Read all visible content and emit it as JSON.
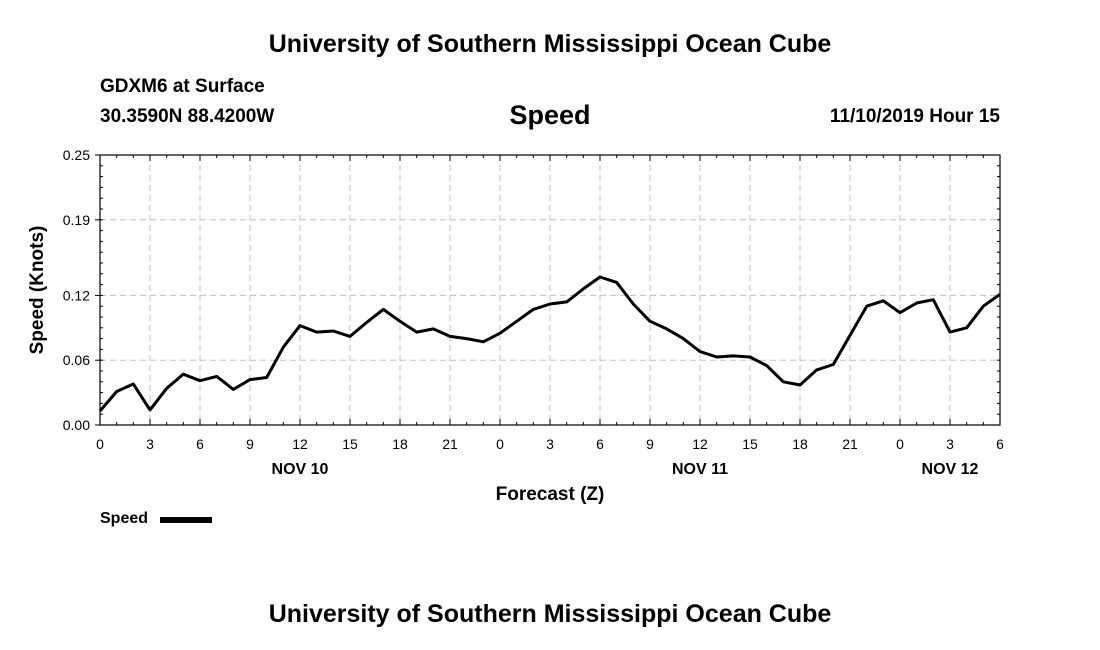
{
  "header": {
    "top_title": "University of Southern Mississippi Ocean Cube",
    "bottom_title": "University of Southern Mississippi Ocean Cube",
    "station": "GDXM6 at Surface",
    "location": "30.3590N 88.4200W",
    "datetime": "11/10/2019 Hour 15"
  },
  "chart_data": {
    "type": "line",
    "title": "Speed",
    "xlabel": "Forecast (Z)",
    "ylabel": "Speed (Knots)",
    "ylim": [
      0,
      0.25
    ],
    "xlim": [
      0,
      54
    ],
    "grid": true,
    "y_ticks": [
      0.0,
      0.06,
      0.12,
      0.19,
      0.25
    ],
    "y_tick_labels": [
      "0.00",
      "0.06",
      "0.12",
      "0.19",
      "0.25"
    ],
    "x_ticks": [
      0,
      3,
      6,
      9,
      12,
      15,
      18,
      21,
      24,
      27,
      30,
      33,
      36,
      39,
      42,
      45,
      48,
      51,
      54
    ],
    "x_tick_labels": [
      "0",
      "3",
      "6",
      "9",
      "12",
      "15",
      "18",
      "21",
      "0",
      "3",
      "6",
      "9",
      "12",
      "15",
      "18",
      "21",
      "0",
      "3",
      "6"
    ],
    "date_labels": [
      {
        "hour": 12,
        "label": "NOV 10"
      },
      {
        "hour": 36,
        "label": "NOV 11"
      },
      {
        "hour": 51,
        "label": "NOV 12"
      }
    ],
    "legend": "bottom-left",
    "series": [
      {
        "name": "Speed",
        "color": "#000000",
        "x": [
          0,
          1,
          2,
          3,
          4,
          5,
          6,
          7,
          8,
          9,
          10,
          11,
          12,
          13,
          14,
          15,
          16,
          17,
          18,
          19,
          20,
          21,
          22,
          23,
          24,
          25,
          26,
          27,
          28,
          29,
          30,
          31,
          32,
          33,
          34,
          35,
          36,
          37,
          38,
          39,
          40,
          41,
          42,
          43,
          44,
          45,
          46,
          47,
          48,
          49,
          50,
          51,
          52,
          53,
          54
        ],
        "values": [
          0.013,
          0.031,
          0.038,
          0.014,
          0.034,
          0.047,
          0.041,
          0.045,
          0.033,
          0.042,
          0.044,
          0.072,
          0.092,
          0.086,
          0.087,
          0.082,
          0.095,
          0.107,
          0.096,
          0.086,
          0.089,
          0.082,
          0.08,
          0.077,
          0.085,
          0.096,
          0.107,
          0.112,
          0.114,
          0.126,
          0.137,
          0.132,
          0.112,
          0.096,
          0.089,
          0.08,
          0.068,
          0.063,
          0.064,
          0.063,
          0.055,
          0.04,
          0.037,
          0.051,
          0.056,
          0.083,
          0.11,
          0.115,
          0.104,
          0.113,
          0.116,
          0.086,
          0.09,
          0.11,
          0.121
        ]
      }
    ]
  }
}
